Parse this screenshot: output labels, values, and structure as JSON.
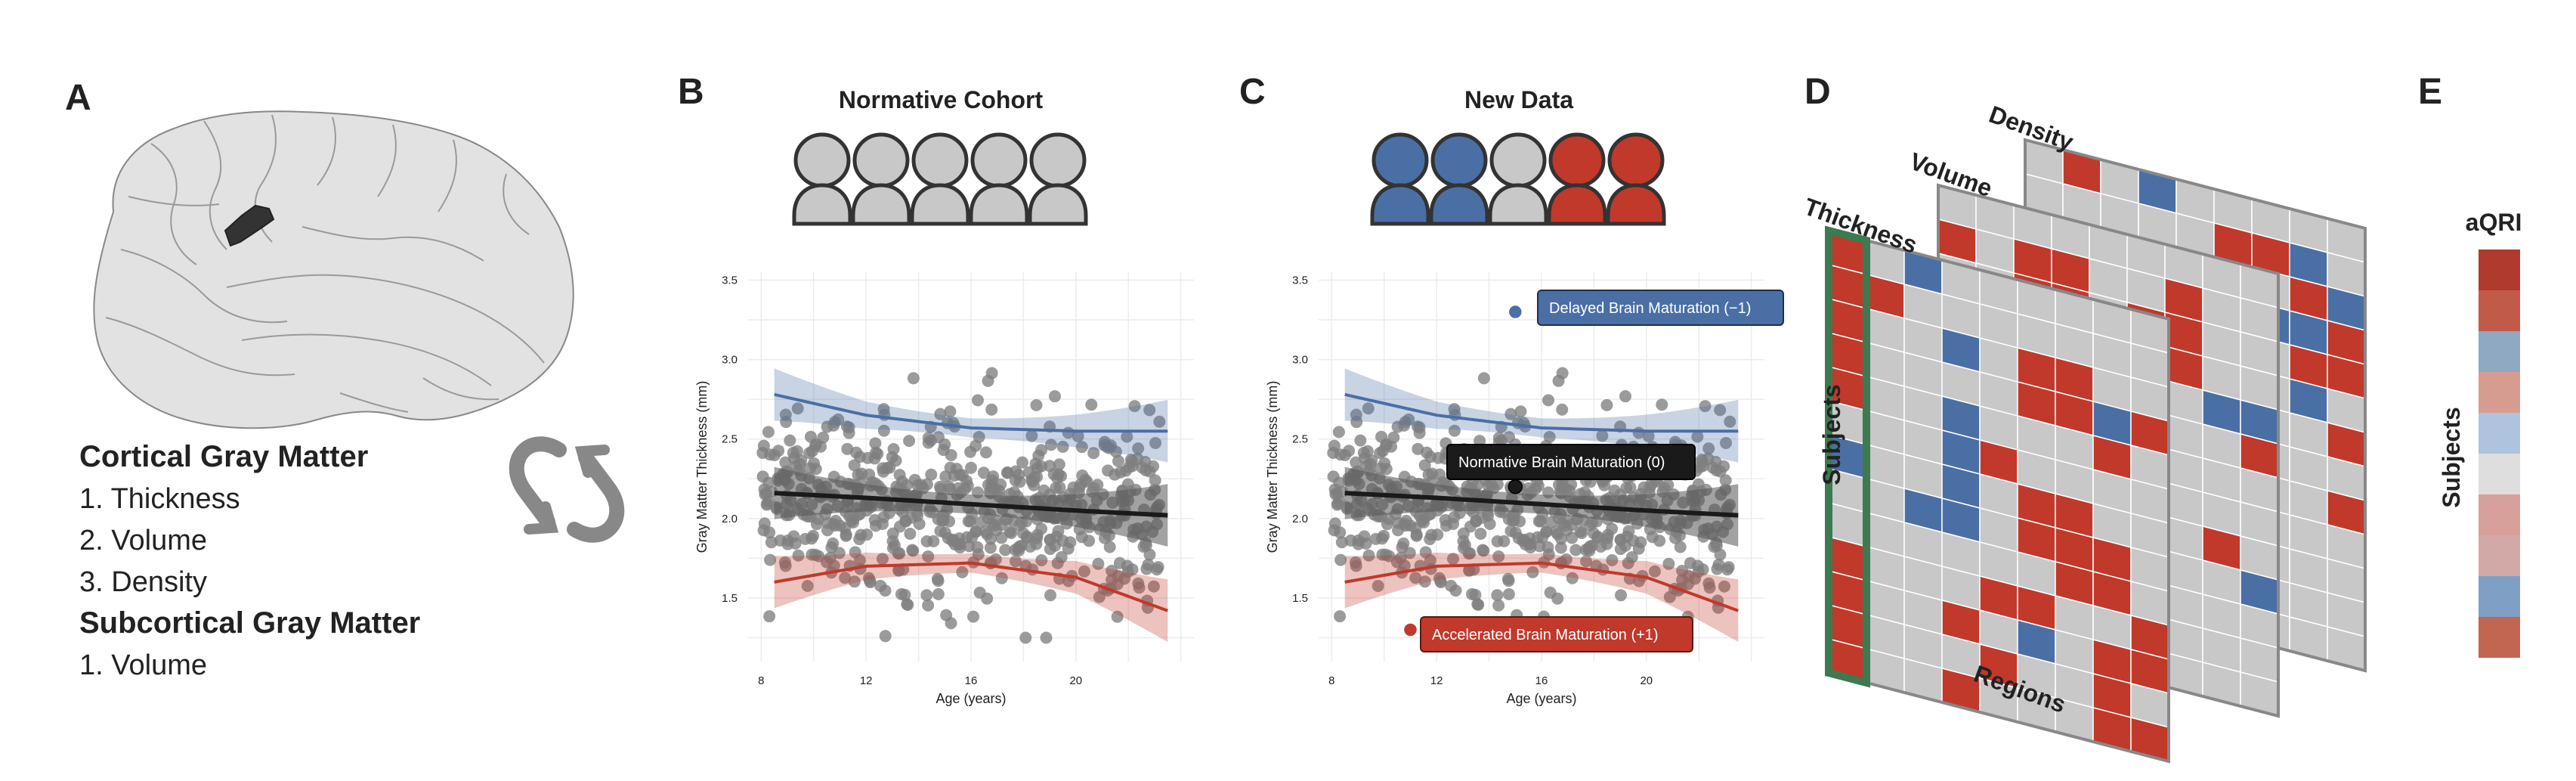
{
  "panels": {
    "A": {
      "letter": "A",
      "list": [
        {
          "text": "Cortical Gray Matter",
          "heading": true
        },
        {
          "text": "1. Thickness",
          "heading": false
        },
        {
          "text": "2. Volume",
          "heading": false
        },
        {
          "text": "3. Density",
          "heading": false
        },
        {
          "text": "Subcortical Gray Matter",
          "heading": true
        },
        {
          "text": "1. Volume",
          "heading": false
        }
      ]
    },
    "B": {
      "letter": "B",
      "title": "Normative Cohort"
    },
    "C": {
      "letter": "C",
      "title": "New Data"
    },
    "D": {
      "letter": "D",
      "layers": [
        "Density",
        "Volume",
        "Thickness"
      ],
      "rows_label": "Subjects",
      "cols_label": "Regions"
    },
    "E": {
      "letter": "E",
      "title": "aQRI",
      "axis_label": "Subjects"
    }
  },
  "callouts": {
    "delayed": "Delayed Brain Maturation (−1)",
    "normative": "Normative Brain Maturation (0)",
    "accelerated": "Accelerated Brain Maturation (+1)"
  },
  "colors": {
    "delayed": "#4a6fa5",
    "accelerated": "#c0392b",
    "normative": "#1a1a1a",
    "neutral": "#c8c8c8",
    "points": "#7f7f7f",
    "qri": [
      "#b03a2e",
      "#c25a4a",
      "#8ea9c1",
      "#d79c90",
      "#aec4de",
      "#dedede",
      "#d7a09a",
      "#d2a9a6",
      "#7f9fc4",
      "#c26652"
    ]
  },
  "cohort_icons": {
    "normative": [
      "neutral",
      "neutral",
      "neutral",
      "neutral",
      "neutral"
    ],
    "new_data": [
      "delayed",
      "delayed",
      "neutral",
      "accelerated",
      "accelerated"
    ]
  },
  "chart_data": [
    {
      "type": "scatter",
      "title": "Normative Cohort",
      "xlabel": "Age (years)",
      "ylabel": "Gray Matter Thickness (mm)",
      "xlim": [
        7.5,
        24.5
      ],
      "ylim": [
        1.1,
        3.55
      ],
      "xticks": [
        "8",
        "12",
        "16",
        "20"
      ],
      "yticks": [
        "1.5",
        "2.0",
        "2.5",
        "3.0",
        "3.5"
      ],
      "grid": true,
      "n_points": 600,
      "trend_lines": [
        {
          "group": "delayed",
          "x": [
            8.5,
            12,
            16,
            20,
            23.5
          ],
          "y": [
            2.78,
            2.65,
            2.57,
            2.55,
            2.55
          ]
        },
        {
          "group": "normative",
          "x": [
            8.5,
            12,
            16,
            20,
            23.5
          ],
          "y": [
            2.16,
            2.13,
            2.09,
            2.05,
            2.02
          ]
        },
        {
          "group": "accelerated",
          "x": [
            8.5,
            12,
            16,
            20,
            23.5
          ],
          "y": [
            1.6,
            1.7,
            1.72,
            1.63,
            1.42
          ]
        }
      ]
    },
    {
      "type": "scatter",
      "title": "New Data",
      "xlabel": "Age (years)",
      "ylabel": "Gray Matter Thickness (mm)",
      "xlim": [
        7.5,
        24.5
      ],
      "ylim": [
        1.1,
        3.55
      ],
      "xticks": [
        "8",
        "12",
        "16",
        "20"
      ],
      "yticks": [
        "1.5",
        "2.0",
        "2.5",
        "3.0",
        "3.5"
      ],
      "grid": true,
      "n_points": 600,
      "trend_lines": [
        {
          "group": "delayed",
          "x": [
            8.5,
            12,
            16,
            20,
            23.5
          ],
          "y": [
            2.78,
            2.65,
            2.57,
            2.55,
            2.55
          ]
        },
        {
          "group": "normative",
          "x": [
            8.5,
            12,
            16,
            20,
            23.5
          ],
          "y": [
            2.16,
            2.13,
            2.09,
            2.05,
            2.02
          ]
        },
        {
          "group": "accelerated",
          "x": [
            8.5,
            12,
            16,
            20,
            23.5
          ],
          "y": [
            1.6,
            1.7,
            1.72,
            1.63,
            1.42
          ]
        }
      ],
      "highlighted_points": [
        {
          "group": "delayed",
          "x": 15.0,
          "y": 3.3
        },
        {
          "group": "normative",
          "x": 15.0,
          "y": 2.2
        },
        {
          "group": "accelerated",
          "x": 11.0,
          "y": 1.3
        }
      ]
    },
    {
      "type": "heatmap",
      "layers": [
        "Density",
        "Volume",
        "Thickness"
      ],
      "rows_label": "Subjects",
      "cols_label": "Regions",
      "rows": 13,
      "cols": 9,
      "values_legend": {
        "-1": "delayed",
        "0": "normative",
        "1": "accelerated"
      },
      "density": [
        [
          0,
          1,
          0,
          -1,
          0,
          0,
          0,
          0,
          0
        ],
        [
          0,
          0,
          0,
          0,
          0,
          1,
          1,
          -1,
          0
        ],
        [
          0,
          0,
          0,
          0,
          0,
          0,
          0,
          1,
          -1
        ],
        [
          0,
          0,
          0,
          0,
          0,
          1,
          -1,
          -1,
          1
        ],
        [
          0,
          0,
          0,
          0,
          0,
          0,
          0,
          1,
          1
        ],
        [
          0,
          0,
          0,
          0,
          0,
          0,
          0,
          -1,
          0
        ],
        [
          0,
          0,
          0,
          0,
          0,
          -1,
          0,
          0,
          1
        ],
        [
          0,
          0,
          0,
          0,
          0,
          1,
          0,
          0,
          0
        ],
        [
          0,
          0,
          0,
          0,
          0,
          0,
          0,
          0,
          1
        ],
        [
          0,
          0,
          0,
          0,
          0,
          -1,
          0,
          0,
          0
        ],
        [
          0,
          0,
          0,
          0,
          0,
          0,
          0,
          0,
          0
        ],
        [
          0,
          0,
          0,
          0,
          0,
          0,
          0,
          0,
          0
        ],
        [
          0,
          0,
          0,
          0,
          0,
          0,
          0,
          0,
          0
        ]
      ],
      "volume": [
        [
          0,
          0,
          0,
          0,
          0,
          0,
          0,
          0,
          0
        ],
        [
          1,
          0,
          1,
          1,
          0,
          0,
          1,
          0,
          0
        ],
        [
          0,
          0,
          1,
          1,
          0,
          1,
          1,
          0,
          0
        ],
        [
          0,
          1,
          1,
          0,
          0,
          0,
          1,
          0,
          0
        ],
        [
          0,
          0,
          0,
          0,
          0,
          0,
          0,
          -1,
          -1
        ],
        [
          0,
          0,
          0,
          0,
          0,
          0,
          0,
          0,
          1
        ],
        [
          0,
          0,
          0,
          0,
          0,
          0,
          0,
          0,
          0
        ],
        [
          0,
          0,
          0,
          0,
          0,
          0,
          0,
          0,
          0
        ],
        [
          0,
          0,
          0,
          0,
          0,
          0,
          0,
          1,
          0
        ],
        [
          0,
          0,
          0,
          0,
          0,
          0,
          0,
          0,
          -1
        ],
        [
          0,
          0,
          0,
          0,
          0,
          0,
          0,
          0,
          0
        ],
        [
          0,
          0,
          0,
          0,
          0,
          0,
          0,
          0,
          0
        ],
        [
          0,
          0,
          0,
          0,
          0,
          0,
          0,
          0,
          0
        ]
      ],
      "thickness": [
        [
          1,
          0,
          -1,
          0,
          0,
          0,
          0,
          0,
          0
        ],
        [
          1,
          1,
          0,
          0,
          0,
          0,
          0,
          0,
          0
        ],
        [
          1,
          0,
          0,
          -1,
          0,
          1,
          1,
          0,
          0
        ],
        [
          1,
          0,
          0,
          0,
          0,
          1,
          1,
          -1,
          1
        ],
        [
          1,
          0,
          0,
          -1,
          0,
          0,
          0,
          1,
          0
        ],
        [
          0,
          0,
          0,
          -1,
          1,
          0,
          0,
          0,
          0
        ],
        [
          -1,
          0,
          0,
          -1,
          0,
          1,
          1,
          0,
          0
        ],
        [
          0,
          0,
          -1,
          -1,
          0,
          1,
          1,
          1,
          0
        ],
        [
          0,
          0,
          0,
          0,
          0,
          0,
          1,
          1,
          0
        ],
        [
          1,
          0,
          0,
          0,
          1,
          1,
          0,
          0,
          1
        ],
        [
          1,
          0,
          0,
          1,
          0,
          -1,
          0,
          1,
          1
        ],
        [
          1,
          0,
          0,
          0,
          1,
          0,
          0,
          1,
          0
        ],
        [
          1,
          0,
          0,
          1,
          0,
          0,
          0,
          1,
          1
        ]
      ]
    },
    {
      "type": "heatmap",
      "title": "aQRI",
      "ylabel": "Subjects",
      "rows": 10,
      "cols": 1
    }
  ]
}
